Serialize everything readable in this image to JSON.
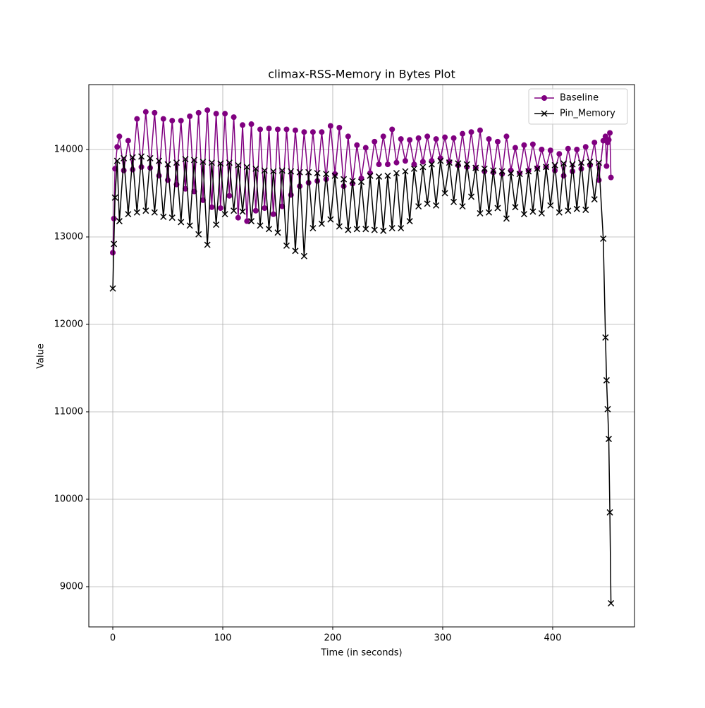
{
  "chart_data": {
    "type": "line",
    "title": "climax-RSS-Memory in Bytes Plot",
    "x_label": "Time (in seconds)",
    "y_label": "Value",
    "x": [
      0,
      1,
      2,
      4,
      6,
      10,
      14,
      18,
      22,
      26,
      30,
      34,
      38,
      42,
      46,
      50,
      54,
      58,
      62,
      66,
      70,
      74,
      78,
      82,
      86,
      90,
      94,
      98,
      102,
      106,
      110,
      114,
      118,
      122,
      126,
      130,
      134,
      138,
      142,
      146,
      150,
      154,
      158,
      162,
      166,
      170,
      174,
      178,
      182,
      186,
      190,
      194,
      198,
      202,
      206,
      210,
      214,
      218,
      222,
      226,
      230,
      234,
      238,
      242,
      246,
      250,
      254,
      258,
      262,
      266,
      270,
      274,
      278,
      282,
      286,
      290,
      294,
      298,
      302,
      306,
      310,
      314,
      318,
      322,
      326,
      330,
      334,
      338,
      342,
      346,
      350,
      354,
      358,
      362,
      366,
      370,
      374,
      378,
      382,
      386,
      390,
      394,
      398,
      402,
      406,
      410,
      414,
      418,
      422,
      426,
      430,
      434,
      438,
      442,
      446,
      448,
      449,
      450,
      451,
      452,
      453
    ],
    "series": [
      {
        "name": "Baseline",
        "color": "#800080",
        "marker": "circle",
        "values": [
          12820,
          13210,
          13780,
          14030,
          14150,
          13760,
          14100,
          13770,
          14350,
          13800,
          14430,
          13790,
          14420,
          13700,
          14350,
          13650,
          14330,
          13600,
          14330,
          13550,
          14380,
          13520,
          14420,
          13420,
          14450,
          13340,
          14410,
          13330,
          14410,
          13470,
          14370,
          13220,
          14280,
          13180,
          14290,
          13300,
          14230,
          13330,
          14240,
          13260,
          14230,
          13350,
          14230,
          13480,
          14220,
          13580,
          14200,
          13620,
          14200,
          13640,
          14200,
          13660,
          14270,
          13720,
          14250,
          13580,
          14150,
          13610,
          14050,
          13670,
          14020,
          13730,
          14090,
          13830,
          14150,
          13830,
          14230,
          13850,
          14120,
          13870,
          14110,
          13830,
          14130,
          13860,
          14150,
          13870,
          14120,
          13900,
          14140,
          13860,
          14130,
          13820,
          14180,
          13800,
          14200,
          13790,
          14220,
          13750,
          14120,
          13740,
          14090,
          13720,
          14150,
          13760,
          14020,
          13730,
          14050,
          13760,
          14060,
          13790,
          14000,
          13800,
          13990,
          13760,
          13950,
          13700,
          14010,
          13750,
          14000,
          13780,
          14030,
          13820,
          14080,
          13650,
          14100,
          14150,
          13810,
          14080,
          14110,
          14190,
          13680
        ]
      },
      {
        "name": "Pin_Memory",
        "color": "#000000",
        "marker": "x",
        "values": [
          12410,
          12920,
          13450,
          13870,
          13180,
          13900,
          13260,
          13910,
          13280,
          13920,
          13300,
          13900,
          13280,
          13870,
          13230,
          13830,
          13220,
          13850,
          13170,
          13890,
          13130,
          13880,
          13030,
          13860,
          12910,
          13850,
          13140,
          13840,
          13260,
          13850,
          13300,
          13820,
          13290,
          13800,
          13180,
          13780,
          13130,
          13760,
          13090,
          13750,
          13050,
          13760,
          12900,
          13750,
          12840,
          13740,
          12780,
          13740,
          13100,
          13730,
          13150,
          13720,
          13200,
          13700,
          13120,
          13660,
          13080,
          13640,
          13090,
          13630,
          13090,
          13700,
          13080,
          13690,
          13070,
          13700,
          13100,
          13730,
          13100,
          13750,
          13180,
          13780,
          13350,
          13800,
          13380,
          13830,
          13360,
          13870,
          13500,
          13850,
          13400,
          13840,
          13350,
          13830,
          13460,
          13790,
          13270,
          13780,
          13280,
          13760,
          13330,
          13750,
          13210,
          13730,
          13340,
          13720,
          13260,
          13750,
          13290,
          13780,
          13270,
          13800,
          13360,
          13820,
          13280,
          13840,
          13300,
          13830,
          13320,
          13850,
          13310,
          13860,
          13430,
          13850,
          12980,
          11850,
          11360,
          11030,
          10690,
          9850,
          8810
        ]
      }
    ],
    "xlim": [
      -21.8,
      474.4
    ],
    "ylim": [
      8540,
      14742
    ],
    "xticks": [
      0,
      100,
      200,
      300,
      400
    ],
    "yticks": [
      9000,
      10000,
      11000,
      12000,
      13000,
      14000
    ],
    "grid": true,
    "legend": "upper right"
  }
}
